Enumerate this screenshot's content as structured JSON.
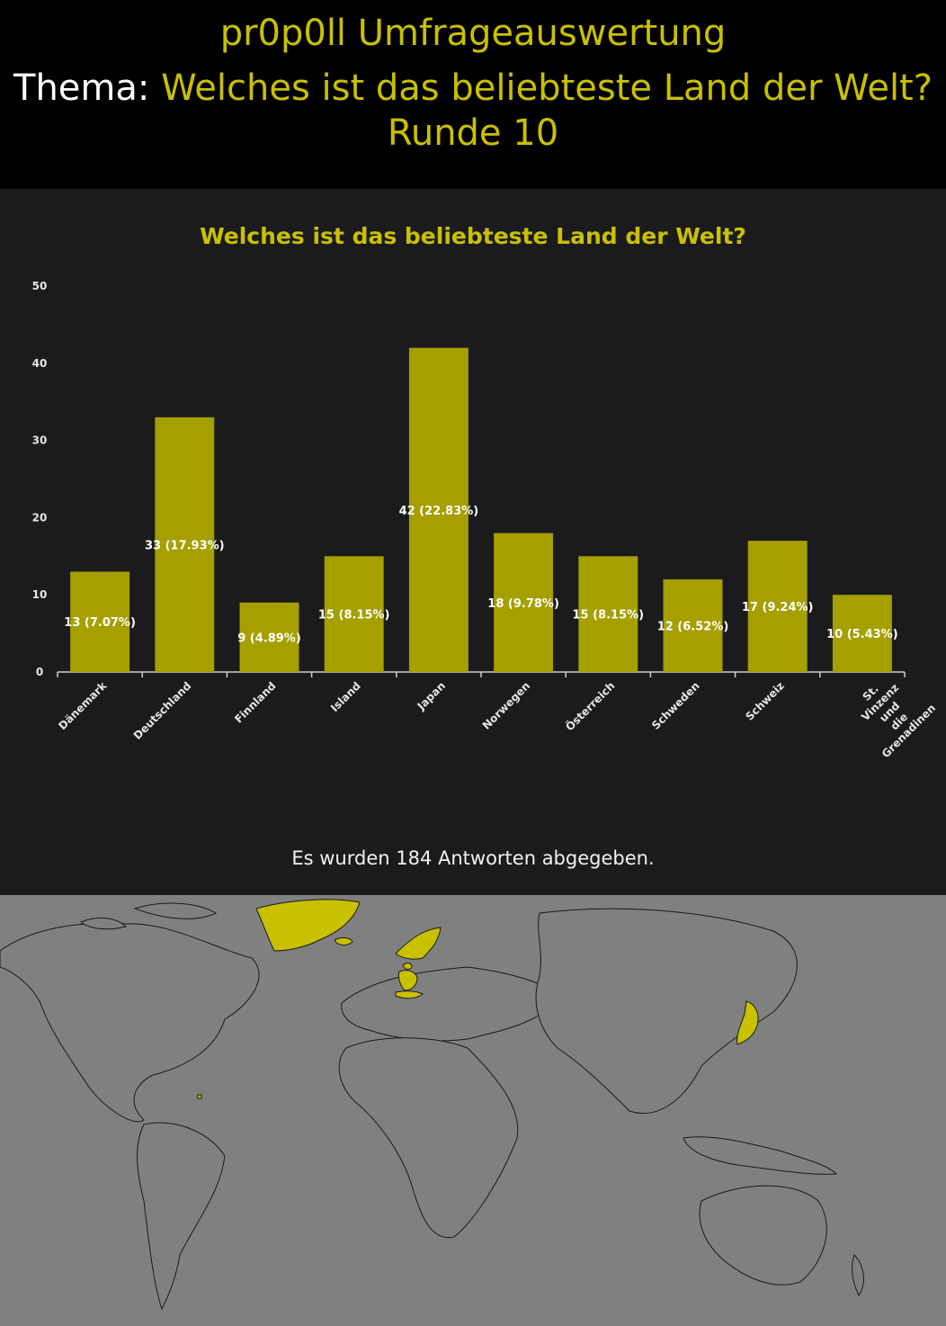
{
  "header": {
    "app_title": "pr0p0ll Umfrageauswertung",
    "topic_label": "Thema:",
    "topic_text": "Welches ist das beliebteste Land der Welt?",
    "round": "Runde 10"
  },
  "chart_data": {
    "type": "bar",
    "title": "Welches ist das beliebteste Land der Welt?",
    "categories": [
      "Dänemark",
      "Deutschland",
      "Finnland",
      "Island",
      "Japan",
      "Norwegen",
      "Österreich",
      "Schweden",
      "Schweiz",
      "St. Vinzenz und die Grenadinen"
    ],
    "values": [
      13,
      33,
      9,
      15,
      42,
      18,
      15,
      12,
      17,
      10
    ],
    "data_labels": [
      "13 (7.07%)",
      "33 (17.93%)",
      "9 (4.89%)",
      "15 (8.15%)",
      "42 (22.83%)",
      "18 (9.78%)",
      "15 (8.15%)",
      "12 (6.52%)",
      "17 (9.24%)",
      "10 (5.43%)"
    ],
    "ylim": [
      0,
      50
    ],
    "yticks": [
      "0",
      "10",
      "20",
      "30",
      "40",
      "50"
    ],
    "xlabel": "",
    "ylabel": "",
    "grid": false,
    "legend": "none",
    "bar_color": "#a59f00"
  },
  "footer": {
    "answers_text": "Es wurden 184 Antworten abgegeben."
  },
  "map": {
    "highlighted": [
      "Grönland",
      "Island",
      "Dänemark",
      "Deutschland",
      "Finnland",
      "Norwegen",
      "Schweden",
      "Österreich",
      "Schweiz",
      "Japan",
      "St. Vinzenz und die Grenadinen"
    ],
    "highlight_color": "#c9c000",
    "land_color": "#808080",
    "border_color": "#1a1a1a"
  },
  "colors": {
    "accent": "#c9c000",
    "panel_bg": "#1b1b1d",
    "page_bg": "#000000",
    "text": "#ffffff"
  }
}
